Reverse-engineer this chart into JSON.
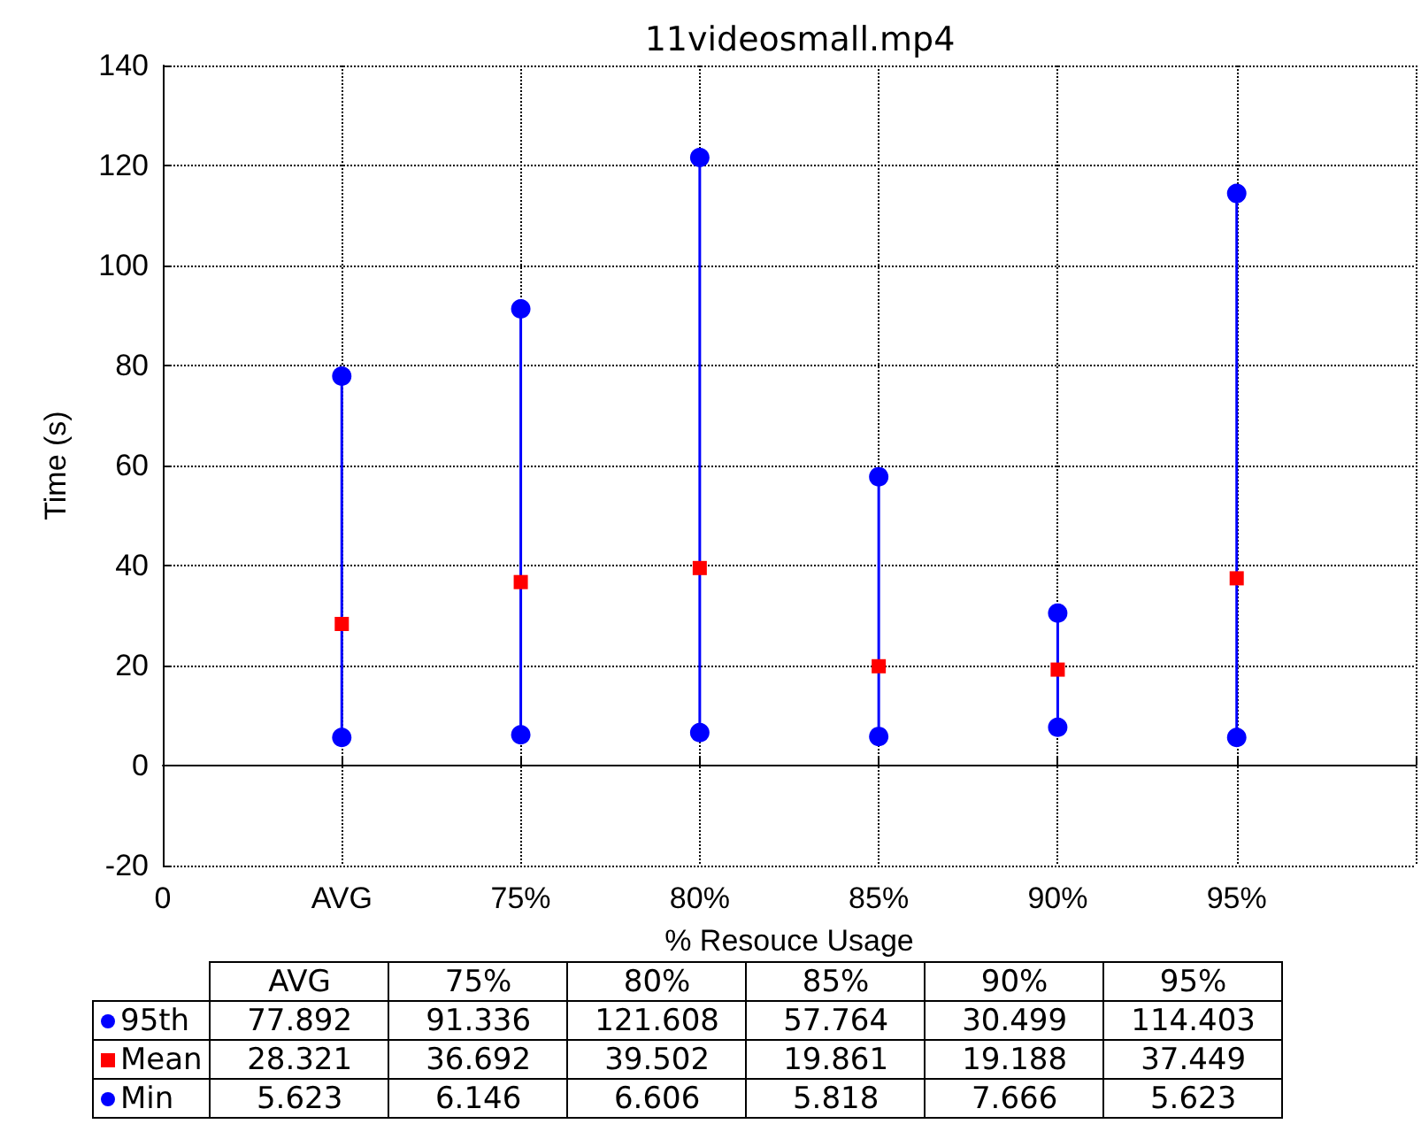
{
  "chart_data": {
    "type": "scatter",
    "title": "11videosmall.mp4",
    "xlabel": "% Resouce Usage",
    "ylabel": "Time (s)",
    "categories": [
      "0",
      "AVG",
      "75%",
      "80%",
      "85%",
      "90%",
      "95%",
      null
    ],
    "series": [
      {
        "type": "line",
        "color": "#0000ff",
        "marker": "none",
        "x": [
          "AVG",
          "AVG"
        ],
        "values": [
          5.623,
          77.892
        ]
      },
      {
        "type": "line",
        "color": "#0000ff",
        "marker": "none",
        "x": [
          "75%",
          "75%"
        ],
        "values": [
          6.146,
          91.336
        ]
      },
      {
        "type": "line",
        "color": "#0000ff",
        "marker": "none",
        "x": [
          "80%",
          "80%"
        ],
        "values": [
          6.606,
          121.608
        ]
      },
      {
        "type": "line",
        "color": "#0000ff",
        "marker": "none",
        "x": [
          "85%",
          "85%"
        ],
        "values": [
          5.818,
          57.764
        ]
      },
      {
        "type": "line",
        "color": "#0000ff",
        "marker": "none",
        "x": [
          "90%",
          "90%"
        ],
        "values": [
          7.666,
          30.499
        ]
      },
      {
        "type": "line",
        "color": "#0000ff",
        "marker": "none",
        "x": [
          "95%",
          "95%"
        ],
        "values": [
          5.623,
          114.403
        ]
      },
      {
        "name": "95th",
        "color": "#0000ff",
        "marker": "circle",
        "values": [
          null,
          77.892,
          91.336,
          121.608,
          57.764,
          30.499,
          114.403,
          null
        ],
        "value_labels": [
          null,
          "77.892",
          "91.336",
          "121.608",
          "57.764",
          "30.499",
          "114.403",
          null
        ]
      },
      {
        "name": "Mean",
        "color": "#ff0000",
        "marker": "square",
        "values": [
          null,
          28.321,
          36.692,
          39.502,
          19.861,
          19.188,
          37.449,
          null
        ],
        "value_labels": [
          null,
          "28.321",
          "36.692",
          "39.502",
          "19.861",
          "19.188",
          "37.449",
          null
        ]
      },
      {
        "name": "Min",
        "color": "#0000ff",
        "marker": "circle",
        "values": [
          null,
          5.623,
          6.146,
          6.606,
          5.818,
          7.666,
          5.623,
          null
        ],
        "value_labels": [
          null,
          "5.623",
          "6.146",
          "6.606",
          "5.818",
          "7.666",
          "5.623",
          null
        ]
      }
    ],
    "ylim": [
      -20,
      140
    ],
    "yticks": [
      -20,
      0,
      20,
      40,
      60,
      80,
      100,
      120,
      140
    ],
    "grid": true,
    "legend": "bottom left"
  }
}
